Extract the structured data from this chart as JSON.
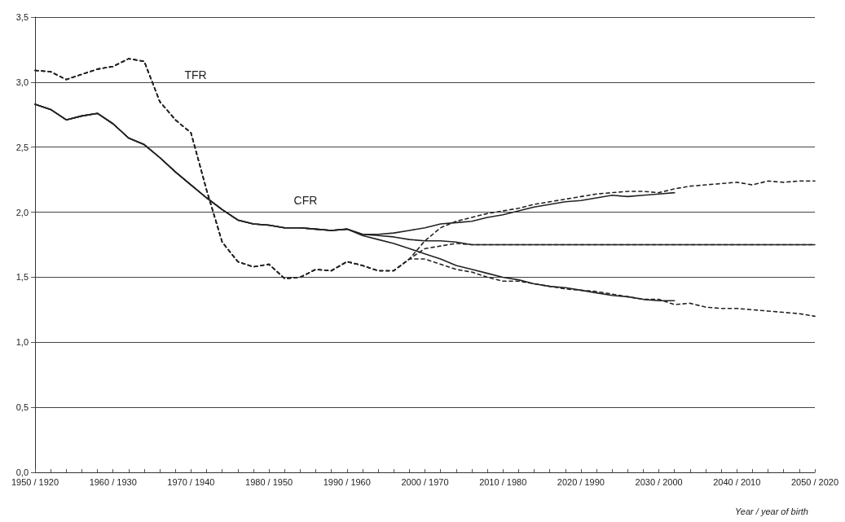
{
  "chart_data": {
    "type": "line",
    "xlabel": "Year / year of birth",
    "categories": [
      "1950 / 1920",
      null,
      null,
      null,
      null,
      "1960 / 1930",
      null,
      null,
      null,
      null,
      "1970 / 1940",
      null,
      null,
      null,
      null,
      "1980 / 1950",
      null,
      null,
      null,
      null,
      "1990 / 1960",
      null,
      null,
      null,
      null,
      "2000 / 1970",
      null,
      null,
      null,
      null,
      "2010 / 1980",
      null,
      null,
      null,
      null,
      "2020 / 1990",
      null,
      null,
      null,
      null,
      "2030 / 2000",
      null,
      null,
      null,
      null,
      "2040 / 2010",
      null,
      null,
      null,
      null,
      "2050 / 2020"
    ],
    "ylim": [
      0,
      3.5
    ],
    "yticks": [
      {
        "value": 0,
        "label": "0,0"
      },
      {
        "value": 0.5,
        "label": "0,5"
      },
      {
        "value": 1,
        "label": "1,0"
      },
      {
        "value": 1.5,
        "label": "1,5"
      },
      {
        "value": 2,
        "label": "2,0"
      },
      {
        "value": 2.5,
        "label": "2,5"
      },
      {
        "value": 3,
        "label": "3,0"
      },
      {
        "value": 3.5,
        "label": "3,5"
      }
    ],
    "grid": "y",
    "marker": "none",
    "annotations": [
      "TFR",
      "CFR"
    ],
    "series": [
      {
        "color": "#222222",
        "line_style": "dashed",
        "values": [
          3.09,
          3.08,
          3.02,
          3.06,
          3.1,
          3.12,
          3.18,
          3.16,
          2.85,
          2.71,
          2.61,
          2.17,
          1.77,
          1.62,
          1.58,
          1.6,
          1.49,
          1.5,
          1.56,
          1.55,
          1.62,
          1.59,
          1.55,
          1.55,
          1.64,
          1.78,
          1.88,
          1.93,
          1.96,
          1.99,
          2.01,
          2.03,
          2.06,
          2.08,
          2.1,
          2.12,
          2.14,
          2.15,
          2.16,
          2.16,
          2.15,
          2.18,
          2.2,
          2.21,
          2.22,
          2.23,
          2.21,
          2.24,
          2.23,
          2.24,
          2.24
        ]
      },
      {
        "color": "#222222",
        "line_style": "dashed",
        "values": [
          3.09,
          3.08,
          3.02,
          3.06,
          3.1,
          3.12,
          3.18,
          3.16,
          2.85,
          2.71,
          2.61,
          2.17,
          1.77,
          1.62,
          1.58,
          1.6,
          1.49,
          1.5,
          1.56,
          1.55,
          1.62,
          1.59,
          1.55,
          1.55,
          1.64,
          1.72,
          1.74,
          1.76,
          1.75,
          1.75,
          1.75,
          1.75,
          1.75,
          1.75,
          1.75,
          1.75,
          1.75,
          1.75,
          1.75,
          1.75,
          1.75,
          1.75,
          1.75,
          1.75,
          1.75,
          1.75,
          1.75,
          1.75,
          1.75,
          1.75,
          1.75
        ]
      },
      {
        "color": "#222222",
        "line_style": "dashed",
        "values": [
          3.09,
          3.08,
          3.02,
          3.06,
          3.1,
          3.12,
          3.18,
          3.16,
          2.85,
          2.71,
          2.61,
          2.17,
          1.77,
          1.62,
          1.58,
          1.6,
          1.49,
          1.5,
          1.56,
          1.55,
          1.62,
          1.59,
          1.55,
          1.55,
          1.64,
          1.64,
          1.6,
          1.56,
          1.54,
          1.5,
          1.47,
          1.47,
          1.45,
          1.43,
          1.41,
          1.4,
          1.39,
          1.37,
          1.35,
          1.33,
          1.33,
          1.29,
          1.3,
          1.27,
          1.26,
          1.26,
          1.25,
          1.24,
          1.23,
          1.22,
          1.2
        ]
      },
      {
        "color": "#222222",
        "line_style": "solid",
        "values": [
          2.83,
          2.79,
          2.71,
          2.74,
          2.76,
          2.68,
          2.57,
          2.52,
          2.42,
          2.31,
          2.21,
          2.11,
          2.02,
          1.94,
          1.91,
          1.9,
          1.88,
          1.88,
          1.87,
          1.86,
          1.87,
          1.83,
          1.83,
          1.84,
          1.86,
          1.88,
          1.91,
          1.92,
          1.93,
          1.96,
          1.98,
          2.01,
          2.04,
          2.06,
          2.08,
          2.09,
          2.11,
          2.13,
          2.12,
          2.13,
          2.14,
          2.15,
          null,
          null,
          null,
          null,
          null,
          null,
          null,
          null,
          null
        ]
      },
      {
        "color": "#222222",
        "line_style": "solid",
        "values": [
          2.83,
          2.79,
          2.71,
          2.74,
          2.76,
          2.68,
          2.57,
          2.52,
          2.42,
          2.31,
          2.21,
          2.11,
          2.02,
          1.94,
          1.91,
          1.9,
          1.88,
          1.88,
          1.87,
          1.86,
          1.87,
          1.83,
          1.82,
          1.81,
          1.79,
          1.78,
          1.78,
          1.77,
          1.75,
          1.75,
          1.75,
          1.75,
          1.75,
          1.75,
          1.75,
          1.75,
          1.75,
          1.75,
          1.75,
          1.75,
          1.75,
          1.75,
          1.75,
          1.75,
          1.75,
          1.75,
          1.75,
          1.75,
          1.75,
          1.75,
          1.75
        ]
      },
      {
        "color": "#222222",
        "line_style": "solid",
        "values": [
          2.83,
          2.79,
          2.71,
          2.74,
          2.76,
          2.68,
          2.57,
          2.52,
          2.42,
          2.31,
          2.21,
          2.11,
          2.02,
          1.94,
          1.91,
          1.9,
          1.88,
          1.88,
          1.87,
          1.86,
          1.87,
          1.82,
          1.79,
          1.76,
          1.72,
          1.68,
          1.64,
          1.59,
          1.56,
          1.53,
          1.5,
          1.48,
          1.45,
          1.43,
          1.42,
          1.4,
          1.38,
          1.36,
          1.35,
          1.33,
          1.32,
          1.32,
          null,
          null,
          null,
          null,
          null,
          null,
          null,
          null,
          null
        ]
      }
    ]
  }
}
